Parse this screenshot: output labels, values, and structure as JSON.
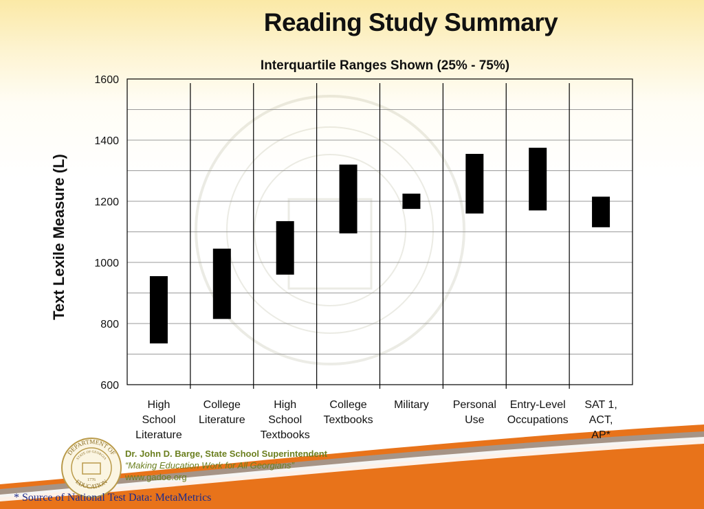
{
  "slide": {
    "title": "Reading Study Summary"
  },
  "footer": {
    "superintendent": "Dr. John D. Barge, State School Superintendent",
    "motto": "“Making Education Work for All Georgians”",
    "website": "www.gadoe.org",
    "source": "* Source of National Test Data: MetaMetrics",
    "seal": {
      "top_text": "DEPARTMENT OF",
      "bottom_text": "EDUCATION",
      "inner_text": "STATE OF GEORGIA",
      "year": "1776"
    }
  },
  "colors": {
    "bar": "#000000",
    "footer_orange": "#e8731a",
    "footer_text": "#6b7f1f",
    "source_text": "#1d2a8a"
  },
  "chart_data": {
    "type": "bar",
    "subtype": "floating-range",
    "title": "Interquartile Ranges Shown (25% - 75%)",
    "ylabel": "Text Lexile Measure (L)",
    "xlabel": "",
    "ylim": [
      600,
      1600
    ],
    "yticks": [
      600,
      800,
      1000,
      1200,
      1400,
      1600
    ],
    "grid": true,
    "categories": [
      [
        "High",
        "School",
        "Literature"
      ],
      [
        "College",
        "Literature"
      ],
      [
        "High",
        "School",
        "Textbooks"
      ],
      [
        "College",
        "Textbooks"
      ],
      [
        "Military"
      ],
      [
        "Personal",
        "Use"
      ],
      [
        "Entry-Level",
        "Occupations"
      ],
      [
        "SAT 1,",
        "ACT,",
        "AP*"
      ]
    ],
    "ranges": [
      [
        735,
        955
      ],
      [
        815,
        1045
      ],
      [
        960,
        1135
      ],
      [
        1095,
        1320
      ],
      [
        1175,
        1225
      ],
      [
        1160,
        1355
      ],
      [
        1170,
        1375
      ],
      [
        1115,
        1215
      ]
    ]
  }
}
